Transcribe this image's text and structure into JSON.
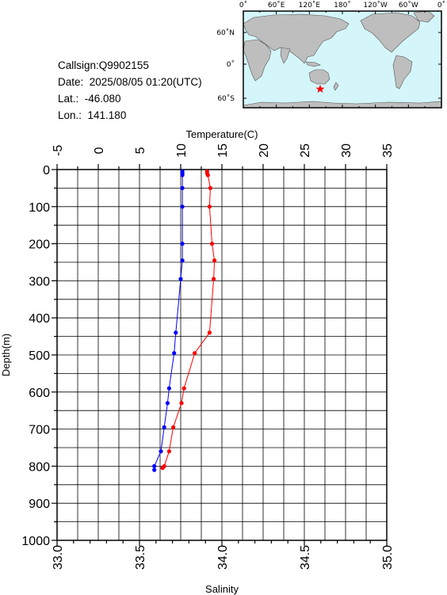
{
  "float_info": {
    "callsign": "Callsign:Q9902155",
    "date": "Date:  2025/08/05 01:20(UTC)",
    "lat": "Lat.:  -46.080",
    "lon": "Lon.:  141.180"
  },
  "map": {
    "top_labels": [
      "0˚",
      "60˚E",
      "120˚E",
      "180˚",
      "120˚W",
      "60˚W",
      "0˚"
    ],
    "side_labels": [
      "60˚N",
      "0˚",
      "60˚S"
    ],
    "marker": "red-star",
    "colors": {
      "ocean": "#d4f6fa",
      "land": "#bebebe",
      "marker": "#ff0000"
    }
  },
  "chart_data": {
    "type": "line",
    "temperature_axis": {
      "label": "Temperature(C)",
      "range": [
        -5,
        35
      ],
      "ticks": [
        "-5",
        "0",
        "5",
        "10",
        "15",
        "20",
        "25",
        "30",
        "35"
      ]
    },
    "salinity_axis": {
      "label": "Salinity",
      "range": [
        33.0,
        35.0
      ],
      "ticks": [
        "33.0",
        "33.5",
        "34.0",
        "34.5",
        "35.0"
      ]
    },
    "depth_axis": {
      "label": "Depth(m)",
      "range": [
        0,
        1000
      ],
      "ticks": [
        "0",
        "100",
        "200",
        "300",
        "400",
        "500",
        "600",
        "700",
        "800",
        "900",
        "1000"
      ]
    },
    "grid": true,
    "series": [
      {
        "name": "Temperature",
        "axis": "temperature",
        "color": "#ff0000",
        "depth": [
          5,
          10,
          15,
          50,
          100,
          200,
          245,
          295,
          440,
          495,
          590,
          630,
          695,
          760,
          800,
          805
        ],
        "values": [
          13.2,
          13.2,
          13.3,
          13.6,
          13.5,
          13.8,
          14.1,
          14.0,
          13.5,
          11.7,
          10.4,
          10.1,
          9.1,
          8.6,
          8.0,
          7.8
        ]
      },
      {
        "name": "Salinity",
        "axis": "salinity",
        "color": "#0000ff",
        "depth": [
          5,
          10,
          15,
          50,
          100,
          200,
          245,
          295,
          440,
          495,
          590,
          630,
          695,
          760,
          800,
          810
        ],
        "values": [
          33.76,
          33.76,
          33.76,
          33.76,
          33.76,
          33.76,
          33.76,
          33.75,
          33.72,
          33.71,
          33.68,
          33.67,
          33.65,
          33.63,
          33.59,
          33.59
        ]
      }
    ]
  }
}
